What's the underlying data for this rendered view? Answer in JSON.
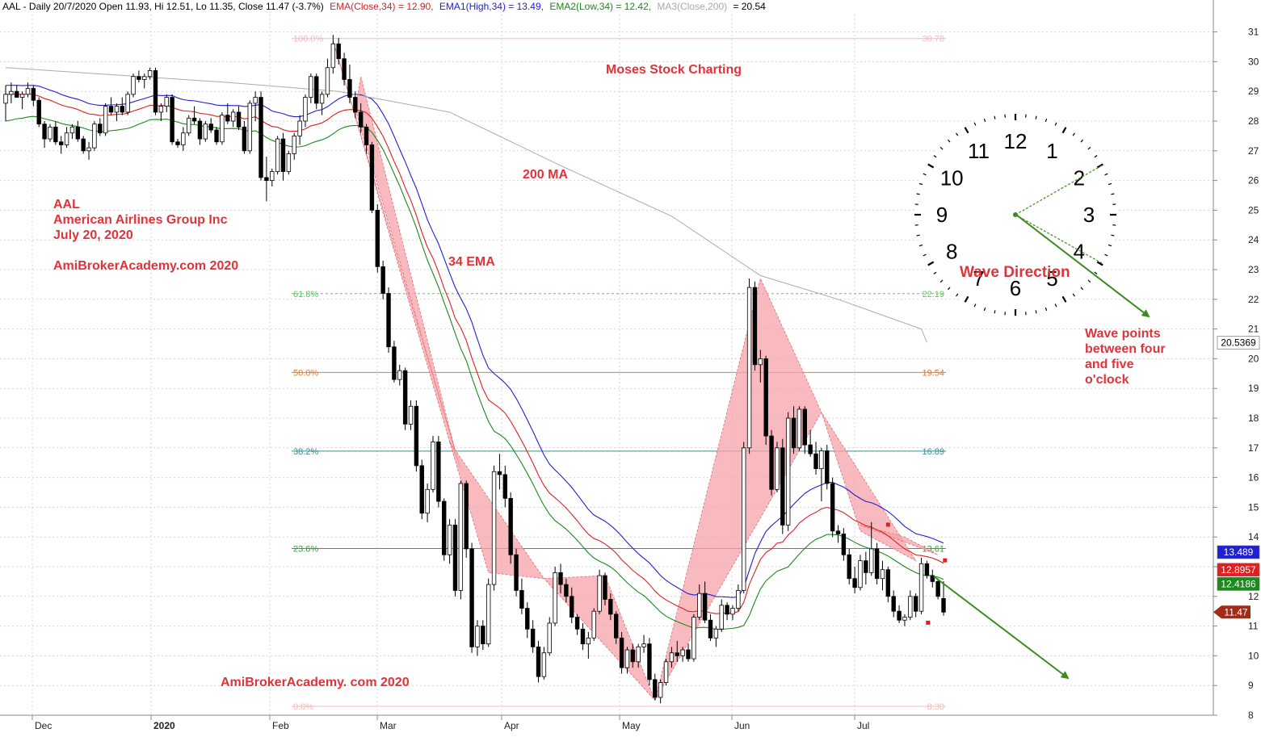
{
  "header": {
    "prefix": "AAL - Daily 20/7/2020 Open 11.93, Hi 12.51, Lo 11.35, Close 11.47 (-3.7%)",
    "ema": "EMA(Close,34) = 12.90,",
    "ema1": "EMA1(High,34) = 13.49,",
    "ema2": "EMA2(Low,34) = 12.42,",
    "ma3": "MA3(Close,200)",
    "ma3_value": "= 20.54"
  },
  "annotations": {
    "symbol": "AAL",
    "company": "American Airlines Group Inc",
    "date": "July 20, 2020",
    "site_top": "AmiBrokerAcademy.com  2020",
    "site_bottom": "AmiBrokerAcademy. com  2020",
    "brand": "Moses Stock Charting",
    "ma200_label": "200 MA",
    "ema34_label": "34 EMA",
    "wave_direction": "Wave Direction",
    "wave_note": [
      "Wave points",
      "between four",
      "and five",
      "o'clock"
    ]
  },
  "clock": {
    "numbers": [
      "12",
      "1",
      "2",
      "3",
      "4",
      "5",
      "6",
      "7",
      "8",
      "9",
      "10",
      "11"
    ]
  },
  "colors": {
    "ema": "#e02020",
    "ema_high": "#1f1fd6",
    "ema_low": "#1a8a1a",
    "ma200": "#aaaaaa",
    "fib_fill": "#f5a3a8",
    "arrow": "#3c8c1e",
    "bull": "#ffffff",
    "bear": "#000000"
  },
  "chart_data": {
    "type": "candlestick",
    "ylim": [
      8,
      31
    ],
    "y_ticks": [
      8,
      9,
      10,
      11,
      12,
      13,
      14,
      15,
      16,
      17,
      18,
      19,
      20,
      21,
      22,
      23,
      24,
      25,
      26,
      27,
      28,
      29,
      30,
      31
    ],
    "x_ticks": [
      "Dec",
      "2020",
      "Feb",
      "Mar",
      "Apr",
      "May",
      "Jun",
      "Jul"
    ],
    "fibonacci": [
      {
        "level": "100.0%",
        "price": "30.78"
      },
      {
        "level": "61.8%",
        "price": "22.19"
      },
      {
        "level": "50.0%",
        "price": "19.54"
      },
      {
        "level": "38.2%",
        "price": "16.89"
      },
      {
        "level": "23.6%",
        "price": "13.61"
      },
      {
        "level": "0.0%",
        "price": "8.30"
      }
    ],
    "price_tags": [
      {
        "value": "20.5369",
        "color": "#ffffff",
        "text_color": "#000000"
      },
      {
        "value": "13.489",
        "color": "#1f1fd6",
        "text_color": "#ffffff"
      },
      {
        "value": "12.8957",
        "color": "#e02020",
        "text_color": "#ffffff"
      },
      {
        "value": "12.4186",
        "color": "#1a8a1a",
        "text_color": "#ffffff"
      },
      {
        "value": "11.47",
        "color": "#a32a14",
        "text_color": "#ffffff"
      }
    ],
    "ohlc": [
      [
        28.6,
        29.2,
        28.0,
        28.9
      ],
      [
        28.9,
        29.3,
        28.6,
        29.0
      ],
      [
        29.0,
        29.2,
        28.8,
        28.8
      ],
      [
        28.8,
        29.0,
        28.4,
        28.9
      ],
      [
        28.9,
        29.3,
        28.8,
        29.1
      ],
      [
        29.1,
        29.2,
        28.5,
        28.7
      ],
      [
        28.7,
        28.8,
        27.8,
        27.9
      ],
      [
        27.9,
        28.0,
        27.1,
        27.4
      ],
      [
        27.4,
        27.9,
        27.3,
        27.8
      ],
      [
        27.8,
        28.0,
        27.2,
        27.3
      ],
      [
        27.3,
        27.5,
        26.9,
        27.2
      ],
      [
        27.2,
        27.8,
        27.1,
        27.6
      ],
      [
        27.6,
        27.9,
        27.4,
        27.8
      ],
      [
        27.8,
        28.0,
        27.3,
        27.4
      ],
      [
        27.4,
        27.5,
        26.9,
        27.0
      ],
      [
        27.0,
        27.3,
        26.7,
        27.1
      ],
      [
        27.1,
        28.0,
        27.0,
        27.9
      ],
      [
        27.9,
        28.1,
        27.5,
        27.6
      ],
      [
        27.6,
        28.6,
        27.5,
        28.5
      ],
      [
        28.5,
        28.8,
        28.2,
        28.3
      ],
      [
        28.3,
        28.6,
        28.0,
        28.5
      ],
      [
        28.5,
        28.8,
        28.2,
        28.3
      ],
      [
        28.3,
        29.0,
        28.2,
        28.9
      ],
      [
        28.9,
        29.6,
        28.8,
        29.5
      ],
      [
        29.5,
        29.7,
        29.3,
        29.4
      ],
      [
        29.4,
        29.6,
        29.1,
        29.5
      ],
      [
        29.5,
        29.8,
        29.4,
        29.7
      ],
      [
        29.7,
        29.8,
        28.2,
        28.3
      ],
      [
        28.3,
        28.6,
        28.0,
        28.5
      ],
      [
        28.5,
        28.9,
        28.3,
        28.8
      ],
      [
        28.8,
        28.9,
        27.2,
        27.3
      ],
      [
        27.3,
        27.4,
        27.1,
        27.2
      ],
      [
        27.2,
        27.8,
        27.0,
        27.6
      ],
      [
        27.6,
        28.2,
        27.5,
        28.1
      ],
      [
        28.1,
        28.5,
        27.9,
        28.0
      ],
      [
        28.0,
        28.1,
        27.2,
        27.4
      ],
      [
        27.4,
        28.0,
        27.3,
        27.9
      ],
      [
        27.9,
        28.1,
        27.6,
        27.7
      ],
      [
        27.7,
        27.8,
        27.2,
        27.3
      ],
      [
        27.3,
        28.3,
        27.2,
        28.2
      ],
      [
        28.2,
        28.6,
        27.9,
        28.0
      ],
      [
        28.0,
        28.4,
        27.8,
        28.3
      ],
      [
        28.3,
        28.5,
        27.7,
        27.8
      ],
      [
        27.8,
        28.0,
        26.9,
        27.0
      ],
      [
        27.0,
        28.7,
        26.9,
        28.6
      ],
      [
        28.6,
        29.0,
        28.0,
        28.8
      ],
      [
        28.8,
        29.0,
        26.0,
        26.1
      ],
      [
        26.1,
        26.8,
        25.3,
        26.0
      ],
      [
        26.0,
        26.4,
        25.8,
        26.3
      ],
      [
        26.3,
        27.5,
        26.2,
        27.4
      ],
      [
        27.4,
        27.6,
        26.0,
        26.3
      ],
      [
        26.3,
        27.0,
        26.2,
        26.9
      ],
      [
        26.9,
        27.6,
        26.7,
        27.5
      ],
      [
        27.5,
        28.2,
        27.2,
        28.0
      ],
      [
        28.0,
        28.9,
        27.8,
        28.8
      ],
      [
        28.8,
        29.6,
        28.6,
        29.5
      ],
      [
        29.5,
        29.6,
        28.4,
        28.6
      ],
      [
        28.6,
        29.0,
        28.2,
        28.9
      ],
      [
        28.9,
        30.1,
        28.8,
        29.8
      ],
      [
        29.8,
        30.9,
        29.6,
        30.6
      ],
      [
        30.6,
        30.8,
        29.9,
        30.1
      ],
      [
        30.1,
        30.3,
        29.2,
        29.4
      ],
      [
        29.4,
        29.9,
        28.6,
        28.8
      ],
      [
        28.8,
        29.0,
        28.1,
        28.3
      ],
      [
        28.3,
        28.6,
        27.6,
        27.8
      ],
      [
        27.8,
        27.9,
        26.9,
        27.2
      ],
      [
        27.2,
        27.3,
        24.9,
        25.0
      ],
      [
        25.0,
        25.2,
        22.9,
        23.1
      ],
      [
        23.1,
        23.3,
        22.0,
        22.2
      ],
      [
        22.2,
        22.4,
        20.2,
        20.4
      ],
      [
        20.4,
        20.6,
        19.2,
        19.3
      ],
      [
        19.3,
        19.8,
        19.1,
        19.6
      ],
      [
        19.6,
        19.7,
        17.6,
        17.8
      ],
      [
        17.8,
        18.6,
        17.6,
        18.4
      ],
      [
        18.4,
        18.6,
        16.2,
        16.4
      ],
      [
        16.4,
        16.6,
        14.6,
        14.8
      ],
      [
        14.8,
        15.8,
        14.5,
        15.6
      ],
      [
        15.6,
        17.4,
        15.5,
        17.2
      ],
      [
        17.2,
        17.4,
        15.0,
        15.2
      ],
      [
        15.2,
        15.3,
        13.2,
        13.4
      ],
      [
        13.4,
        14.6,
        13.1,
        14.4
      ],
      [
        14.4,
        14.6,
        12.0,
        12.2
      ],
      [
        12.2,
        15.9,
        11.9,
        15.8
      ],
      [
        15.8,
        15.9,
        13.3,
        13.6
      ],
      [
        13.6,
        13.8,
        10.1,
        10.3
      ],
      [
        10.3,
        11.2,
        10.0,
        11.0
      ],
      [
        11.0,
        11.2,
        10.2,
        10.4
      ],
      [
        10.4,
        12.6,
        10.3,
        12.4
      ],
      [
        12.4,
        16.4,
        12.2,
        16.2
      ],
      [
        16.2,
        16.8,
        15.6,
        16.1
      ],
      [
        16.1,
        16.4,
        15.0,
        15.3
      ],
      [
        15.3,
        15.5,
        13.1,
        13.4
      ],
      [
        13.4,
        13.6,
        12.0,
        12.2
      ],
      [
        12.2,
        12.6,
        11.4,
        11.6
      ],
      [
        11.6,
        11.8,
        10.6,
        10.9
      ],
      [
        10.9,
        11.2,
        10.1,
        10.3
      ],
      [
        10.3,
        10.5,
        9.1,
        9.3
      ],
      [
        9.3,
        10.3,
        9.2,
        10.1
      ],
      [
        10.1,
        11.3,
        10.0,
        11.1
      ],
      [
        11.1,
        13.0,
        11.0,
        12.8
      ],
      [
        12.8,
        13.1,
        12.1,
        12.4
      ],
      [
        12.4,
        12.6,
        11.8,
        12.0
      ],
      [
        12.0,
        12.3,
        11.1,
        11.3
      ],
      [
        11.3,
        11.4,
        10.7,
        10.9
      ],
      [
        10.9,
        11.1,
        10.2,
        10.4
      ],
      [
        10.4,
        10.8,
        9.9,
        10.6
      ],
      [
        10.6,
        11.6,
        10.5,
        11.5
      ],
      [
        11.5,
        12.9,
        11.4,
        12.7
      ],
      [
        12.7,
        12.8,
        11.7,
        11.9
      ],
      [
        11.9,
        12.1,
        11.2,
        11.4
      ],
      [
        11.4,
        11.5,
        10.4,
        10.6
      ],
      [
        10.6,
        10.8,
        9.4,
        9.6
      ],
      [
        9.6,
        10.3,
        9.4,
        10.2
      ],
      [
        10.2,
        10.4,
        9.6,
        9.8
      ],
      [
        9.8,
        10.4,
        9.6,
        10.3
      ],
      [
        10.3,
        10.7,
        10.1,
        10.4
      ],
      [
        10.4,
        10.6,
        9.0,
        9.2
      ],
      [
        9.2,
        9.4,
        8.5,
        8.6
      ],
      [
        8.6,
        9.2,
        8.4,
        9.1
      ],
      [
        9.1,
        9.9,
        9.0,
        9.8
      ],
      [
        9.8,
        10.3,
        9.6,
        10.1
      ],
      [
        10.1,
        10.5,
        9.8,
        10.0
      ],
      [
        10.0,
        10.3,
        9.8,
        10.2
      ],
      [
        10.2,
        10.4,
        9.8,
        9.9
      ],
      [
        9.9,
        11.4,
        9.8,
        11.3
      ],
      [
        11.3,
        12.4,
        11.2,
        12.1
      ],
      [
        12.1,
        12.5,
        11.1,
        11.2
      ],
      [
        11.2,
        11.4,
        10.5,
        10.6
      ],
      [
        10.6,
        11.0,
        10.3,
        10.9
      ],
      [
        10.9,
        11.9,
        10.8,
        11.7
      ],
      [
        11.7,
        11.8,
        11.2,
        11.4
      ],
      [
        11.4,
        11.7,
        11.2,
        11.6
      ],
      [
        11.6,
        12.4,
        11.5,
        12.2
      ],
      [
        12.2,
        17.2,
        12.1,
        17.0
      ],
      [
        17.0,
        22.7,
        16.8,
        22.4
      ],
      [
        22.4,
        22.6,
        19.6,
        19.8
      ],
      [
        19.8,
        20.3,
        19.2,
        20.0
      ],
      [
        20.0,
        20.1,
        17.1,
        17.4
      ],
      [
        17.4,
        17.6,
        15.4,
        15.6
      ],
      [
        15.6,
        17.2,
        15.5,
        17.0
      ],
      [
        17.0,
        17.3,
        14.1,
        14.4
      ],
      [
        14.4,
        18.2,
        14.2,
        18.0
      ],
      [
        18.0,
        18.4,
        16.8,
        17.0
      ],
      [
        17.0,
        18.4,
        16.9,
        18.3
      ],
      [
        18.3,
        18.4,
        16.8,
        17.1
      ],
      [
        17.1,
        17.6,
        16.7,
        16.8
      ],
      [
        16.8,
        17.2,
        16.1,
        16.3
      ],
      [
        16.3,
        17.0,
        15.2,
        16.9
      ],
      [
        16.9,
        17.1,
        15.6,
        15.8
      ],
      [
        15.8,
        16.0,
        14.0,
        14.2
      ],
      [
        14.2,
        14.4,
        13.8,
        14.1
      ],
      [
        14.1,
        14.3,
        13.2,
        13.4
      ],
      [
        13.4,
        13.6,
        12.4,
        12.6
      ],
      [
        12.6,
        13.0,
        12.1,
        12.3
      ],
      [
        12.3,
        13.4,
        12.2,
        13.2
      ],
      [
        13.2,
        13.5,
        12.4,
        12.8
      ],
      [
        12.8,
        14.5,
        12.7,
        13.6
      ],
      [
        13.6,
        13.8,
        12.4,
        12.6
      ],
      [
        12.6,
        13.2,
        12.2,
        12.9
      ],
      [
        12.9,
        13.0,
        11.8,
        12.0
      ],
      [
        12.0,
        12.2,
        11.3,
        11.5
      ],
      [
        11.5,
        11.7,
        11.1,
        11.2
      ],
      [
        11.2,
        11.4,
        11.0,
        11.3
      ],
      [
        11.3,
        12.2,
        11.2,
        12.0
      ],
      [
        12.0,
        12.1,
        11.3,
        11.5
      ],
      [
        11.5,
        13.3,
        11.4,
        13.1
      ],
      [
        13.1,
        13.2,
        12.6,
        12.7
      ],
      [
        12.7,
        12.9,
        12.3,
        12.5
      ],
      [
        12.5,
        12.6,
        11.9,
        12.0
      ],
      [
        11.93,
        12.51,
        11.35,
        11.47
      ]
    ]
  }
}
